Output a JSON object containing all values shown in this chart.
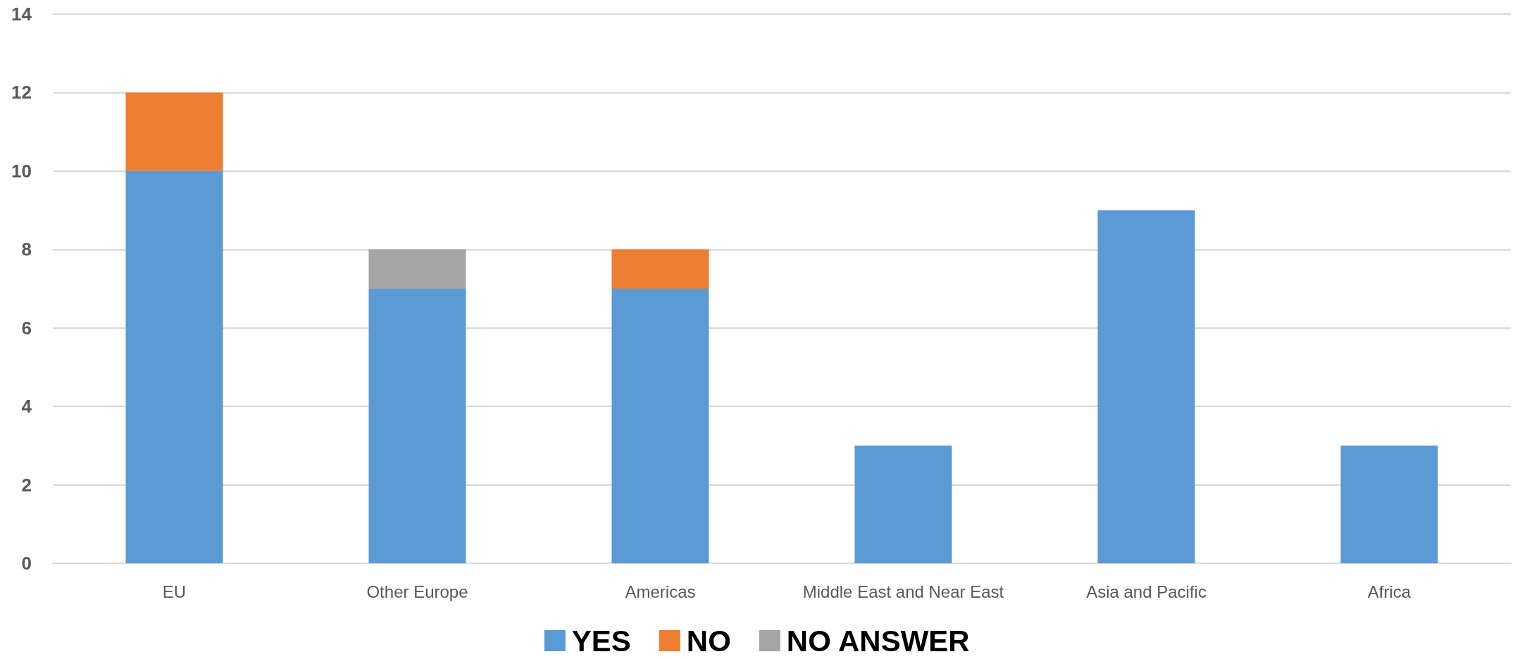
{
  "chart_data": {
    "type": "bar",
    "stacked": true,
    "categories": [
      "EU",
      "Other Europe",
      "Americas",
      "Middle East and Near East",
      "Asia and Pacific",
      "Africa"
    ],
    "series": [
      {
        "name": "YES",
        "color": "#5b9bd5",
        "values": [
          10,
          7,
          7,
          3,
          9,
          3
        ]
      },
      {
        "name": "NO",
        "color": "#ed7d31",
        "values": [
          2,
          null,
          1,
          null,
          null,
          null
        ]
      },
      {
        "name": "NO ANSWER",
        "color": "#a5a5a5",
        "values": [
          null,
          1,
          null,
          null,
          null,
          null
        ]
      }
    ],
    "ylim": [
      0,
      14
    ],
    "yticks": [
      0,
      2,
      4,
      6,
      8,
      10,
      12,
      14
    ],
    "grid": "y",
    "legend": "bottom"
  }
}
